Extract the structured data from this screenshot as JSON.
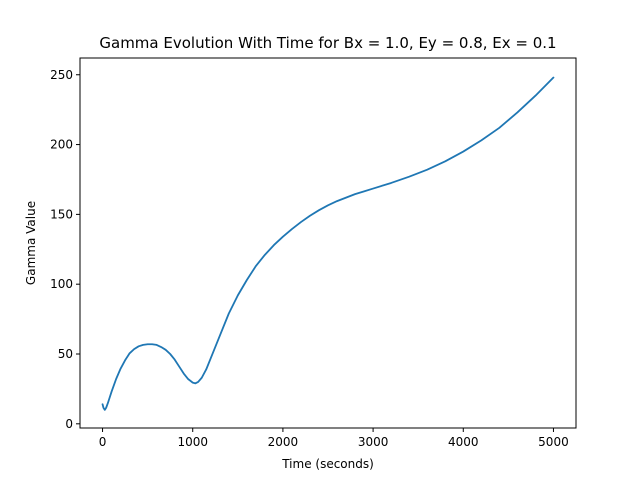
{
  "chart_data": {
    "type": "line",
    "title": "Gamma Evolution With Time for Bx = 1.0, Ey = 0.8, Ex = 0.1",
    "xlabel": "Time (seconds)",
    "ylabel": "Gamma Value",
    "xlim": [
      -250,
      5250
    ],
    "ylim": [
      -3,
      262
    ],
    "xticks": [
      0,
      1000,
      2000,
      3000,
      4000,
      5000
    ],
    "yticks": [
      0,
      50,
      100,
      150,
      200,
      250
    ],
    "grid": false,
    "line_color": "#1f77b4",
    "series": [
      {
        "x": [
          0,
          10,
          25,
          40,
          60,
          80,
          100,
          150,
          200,
          250,
          300,
          350,
          400,
          450,
          500,
          550,
          600,
          650,
          700,
          750,
          800,
          850,
          900,
          950,
          1000,
          1030,
          1060,
          1100,
          1150,
          1200,
          1300,
          1400,
          1500,
          1600,
          1700,
          1800,
          1900,
          2000,
          2100,
          2200,
          2300,
          2400,
          2500,
          2600,
          2700,
          2800,
          2900,
          3000,
          3200,
          3400,
          3600,
          3800,
          4000,
          4200,
          4400,
          4600,
          4800,
          5000
        ],
        "y": [
          14,
          11.5,
          10,
          11.5,
          15,
          19,
          23,
          32,
          39.5,
          45.5,
          50.5,
          53.5,
          55.5,
          56.5,
          57,
          57,
          56.5,
          55,
          53,
          50,
          46,
          41,
          36,
          32,
          29.5,
          29,
          30,
          33,
          39,
          47,
          63,
          79,
          92,
          103,
          113,
          121,
          128,
          134,
          139.5,
          144.5,
          149,
          153,
          156.5,
          159.5,
          162,
          164.5,
          166.5,
          168.5,
          172.5,
          177,
          182,
          188,
          195,
          203,
          212,
          223,
          235,
          248
        ]
      }
    ]
  }
}
